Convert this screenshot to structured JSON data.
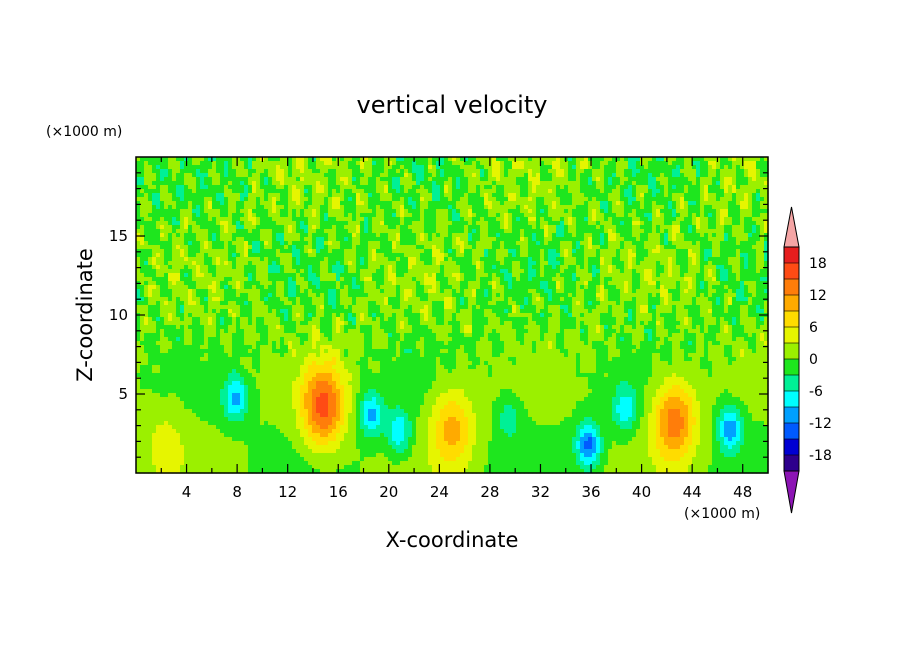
{
  "chart_data": {
    "type": "heatmap",
    "title": "vertical velocity",
    "xlabel": "X-coordinate",
    "ylabel": "Z-coordinate",
    "x_unit": "(×1000 m)",
    "y_unit": "(×1000 m)",
    "xlim": [
      0,
      50
    ],
    "ylim": [
      0,
      20
    ],
    "x_ticks": [
      4,
      8,
      12,
      16,
      20,
      24,
      28,
      32,
      36,
      40,
      44,
      48
    ],
    "y_ticks": [
      5,
      10,
      15
    ],
    "colorbar": {
      "ticks": [
        18,
        12,
        6,
        0,
        -6,
        -12,
        -18
      ],
      "range": [
        -21,
        21
      ],
      "extend": "both",
      "levels": [
        {
          "from": 18,
          "to": 21,
          "color": "#e61e1e"
        },
        {
          "from": 15,
          "to": 18,
          "color": "#ff4b14"
        },
        {
          "from": 12,
          "to": 15,
          "color": "#ff7d0a"
        },
        {
          "from": 9,
          "to": 12,
          "color": "#ffaa00"
        },
        {
          "from": 6,
          "to": 9,
          "color": "#ffdc00"
        },
        {
          "from": 3,
          "to": 6,
          "color": "#e6f500"
        },
        {
          "from": 0,
          "to": 3,
          "color": "#9bf000"
        },
        {
          "from": -3,
          "to": 0,
          "color": "#1ee61e"
        },
        {
          "from": -6,
          "to": -3,
          "color": "#00f096"
        },
        {
          "from": -9,
          "to": -6,
          "color": "#00ffff"
        },
        {
          "from": -12,
          "to": -9,
          "color": "#00a0ff"
        },
        {
          "from": -15,
          "to": -12,
          "color": "#005aff"
        },
        {
          "from": -18,
          "to": -15,
          "color": "#0000d2"
        },
        {
          "from": -21,
          "to": -18,
          "color": "#2d008c"
        }
      ],
      "over_color": "#f5a5a5",
      "under_color": "#8c14b4"
    },
    "features": [
      {
        "x": 2.3,
        "z": 1.8,
        "peak": 4
      },
      {
        "x": 7.9,
        "z": 4.7,
        "peak": -10
      },
      {
        "x": 14.8,
        "z": 4.2,
        "peak": 16
      },
      {
        "x": 18.6,
        "z": 3.7,
        "peak": -10
      },
      {
        "x": 20.8,
        "z": 2.6,
        "peak": -9
      },
      {
        "x": 25.0,
        "z": 2.8,
        "peak": 10
      },
      {
        "x": 29.5,
        "z": 3.5,
        "peak": -5
      },
      {
        "x": 35.8,
        "z": 1.8,
        "peak": -13
      },
      {
        "x": 38.7,
        "z": 4.0,
        "peak": -8
      },
      {
        "x": 42.6,
        "z": 3.3,
        "peak": 14
      },
      {
        "x": 47.0,
        "z": 2.8,
        "peak": -11
      }
    ]
  }
}
